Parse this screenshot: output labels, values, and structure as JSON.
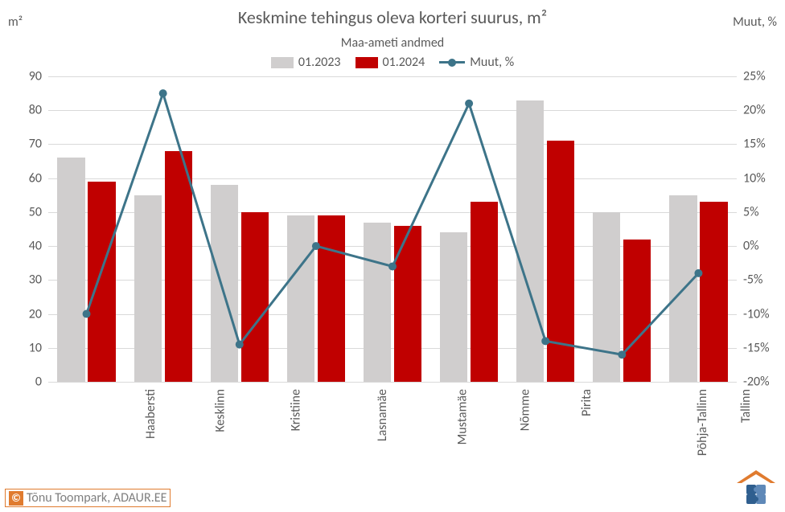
{
  "chart": {
    "type": "bar+line",
    "title": "Keskmine tehingus oleva korteri suurus, m²",
    "subtitle": "Maa-ameti andmed",
    "title_fontsize": 22,
    "subtitle_fontsize": 16,
    "title_color": "#595959",
    "background_color": "#ffffff",
    "plot_background_color": "#ffffff",
    "grid_color": "#d9d9d9",
    "axis_font_color": "#595959",
    "axis_fontsize": 16,
    "y_left": {
      "label": "m²",
      "min": 0,
      "max": 90,
      "step": 10
    },
    "y_right": {
      "label": "Muut, %",
      "min": -20,
      "max": 25,
      "step": 5,
      "suffix": "%"
    },
    "categories": [
      "Haabersti",
      "Kesklinn",
      "Kristiine",
      "Lasnamäe",
      "Mustamäe",
      "Nõmme",
      "Pirita",
      "Põhja-Tallinn",
      "Tallinn"
    ],
    "x_label_fontsize": 16,
    "x_label_rotation": -90,
    "series_bar": [
      {
        "name": "01.2023",
        "color": "#d0cece",
        "values": [
          66,
          55,
          58,
          49,
          47,
          44,
          83,
          50,
          55
        ]
      },
      {
        "name": "01.2024",
        "color": "#c00000",
        "values": [
          59,
          68,
          50,
          49,
          46,
          53,
          71,
          42,
          53
        ]
      }
    ],
    "series_line": {
      "name": "Muut, %",
      "color": "#3d7489",
      "line_width": 3,
      "marker": "circle",
      "marker_size": 10,
      "values": [
        -10,
        22.5,
        -14.5,
        0,
        -3,
        21,
        -14,
        -16,
        -4
      ]
    },
    "bar_width_ratio": 0.36,
    "bar_gap_ratio": 0.04,
    "legend": {
      "fontsize": 16,
      "position": "top"
    }
  },
  "attribution": {
    "copyright_symbol": "©",
    "text": "Tõnu Toompark, ADAUR.EE",
    "border_color": "#e07b2f",
    "badge_bg": "#e07b2f",
    "badge_fg": "#ffffff",
    "text_color": "#7f7f7f",
    "fontsize": 16
  },
  "logo": {
    "roof_color": "#e07b2f",
    "puzzle_colors": [
      "#2f5f8f",
      "#5f89b8",
      "#2f5f8f",
      "#5f89b8"
    ]
  }
}
